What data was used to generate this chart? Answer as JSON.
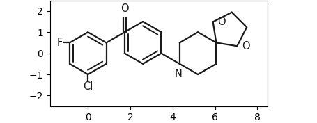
{
  "bg_color": "#ffffff",
  "line_color": "#1a1a1a",
  "line_width": 1.6,
  "font_size": 10.5,
  "figsize": [
    4.56,
    1.77
  ],
  "dpi": 100,
  "xlim": [
    -0.5,
    8.8
  ],
  "ylim": [
    -2.0,
    1.8
  ]
}
